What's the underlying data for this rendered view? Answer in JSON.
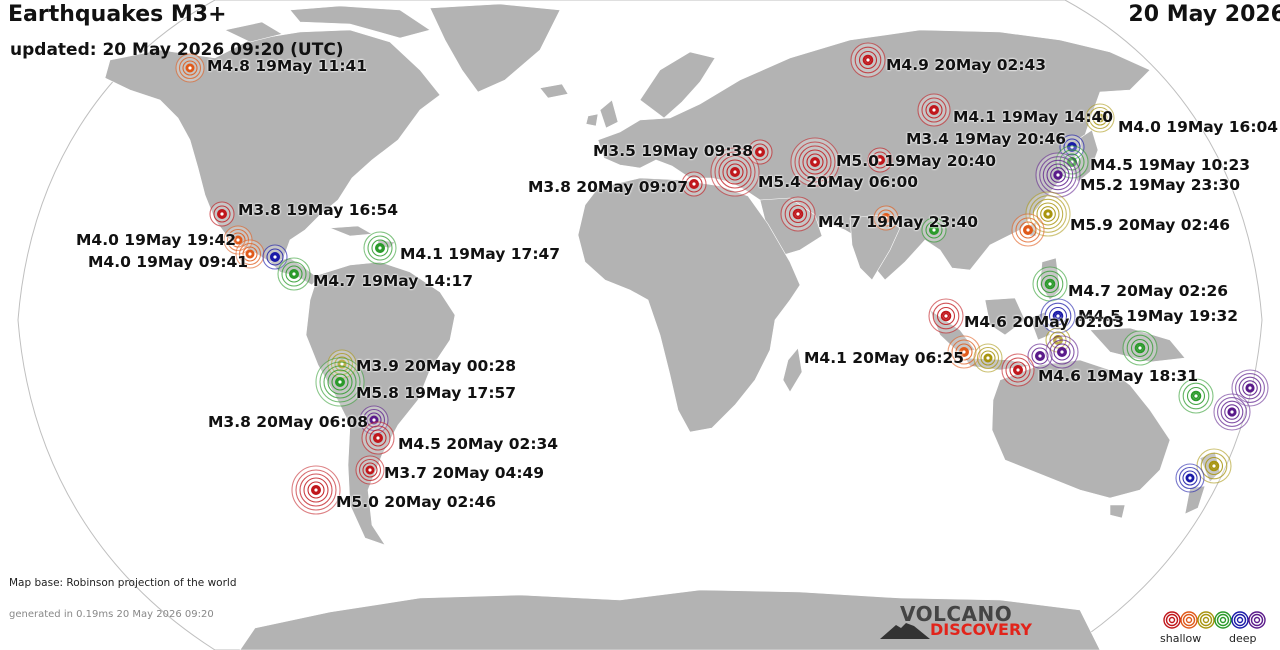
{
  "header": {
    "title": "Earthquakes M3+",
    "date": "20 May 2026",
    "updated": "updated: 20 May 2026 09:20 (UTC)"
  },
  "footer": {
    "map_base": "Map base: Robinson projection of the world",
    "generated": "generated in 0.19ms 20 May 2026 09:20",
    "logo_top": "VOLCANO",
    "logo_bottom": "DISCOVERY"
  },
  "legend": {
    "shallow": "shallow",
    "deep": "deep",
    "colors": [
      "#c0161b",
      "#e05a1a",
      "#a8950f",
      "#2a9a2a",
      "#1a1aa8",
      "#5a1a8a"
    ]
  },
  "depth_colors": {
    "red": "#c0161b",
    "orange": "#e05a1a",
    "olive": "#a8950f",
    "green": "#2a9a2a",
    "blue": "#1a1aa8",
    "purple": "#5a1a8a"
  },
  "labels": [
    "M4.8 19May 11:41",
    "M4.9 20May 02:43",
    "M4.1 19May 14:40",
    "M4.0 19May 16:04",
    "M3.4 19May 20:46",
    "M3.5 19May 09:38",
    "M5.0 19May 20:40",
    "M4.5 19May 10:23",
    "M3.8 20May 09:07",
    "M5.4 20May 06:00",
    "M5.2 19May 23:30",
    "M3.8 19May 16:54",
    "M4.7 19May 23:40",
    "M5.9 20May 02:46",
    "M4.0 19May 19:42",
    "M4.1 19May 17:47",
    "M4.0 19May 09:41",
    "M4.7 19May 14:17",
    "M4.7 20May 02:26",
    "M4.5 19May 19:32",
    "M4.6 20May 02:03",
    "M4.1 20May 06:25",
    "M4.6 19May 18:31",
    "M3.9 20May 00:28",
    "M5.8 19May 17:57",
    "M3.8 20May 06:08",
    "M4.5 20May 02:34",
    "M3.7 20May 04:49",
    "M5.0 20May 02:46"
  ]
}
